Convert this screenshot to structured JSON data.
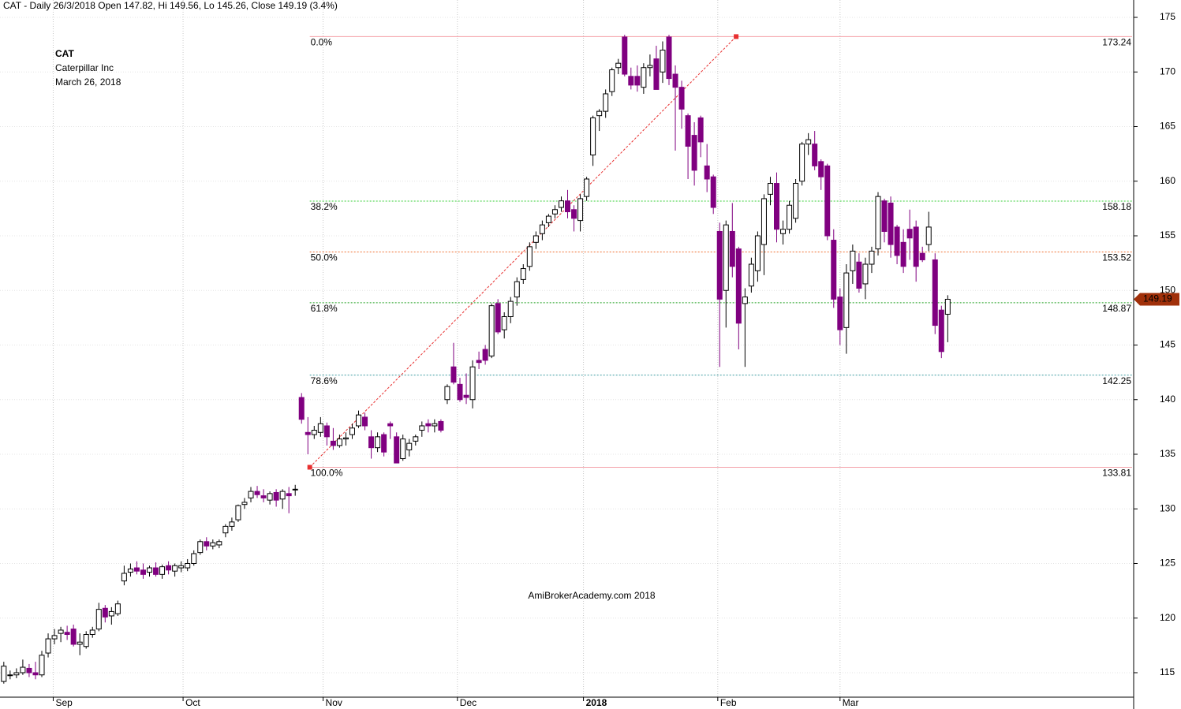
{
  "chart_data": {
    "type": "candlestick",
    "header": "CAT - Daily 26/3/2018 Open 147.82, Hi 149.56, Lo 145.26, Close 149.19 (3.4%)",
    "annotations": [
      "CAT",
      "Caterpillar Inc",
      "March 26, 2018"
    ],
    "watermark": "AmiBrokerAcademy.com  2018",
    "up_color": "#ffffff",
    "down_color": "#800080",
    "annotation_color": "#e8413c",
    "xlim": [
      -0.6,
      178.1
    ],
    "xticks": [
      {
        "value": 7.8,
        "label": "Sep"
      },
      {
        "value": 28.3,
        "label": "Oct"
      },
      {
        "value": 50.4,
        "label": "Nov"
      },
      {
        "value": 71.6,
        "label": "Dec"
      },
      {
        "value": 91.5,
        "label": "2018"
      },
      {
        "value": 112.7,
        "label": "Feb"
      },
      {
        "value": 132,
        "label": "Mar"
      }
    ],
    "ylim": [
      112.76,
      176.59
    ],
    "yticks": [
      115,
      120,
      125,
      130,
      135,
      140,
      145,
      150,
      155,
      160,
      165,
      170,
      175
    ],
    "grid": true,
    "trendline": {
      "x": [
        48.3,
        115.6
      ],
      "y": [
        133.81,
        173.24
      ],
      "color": "#e83030"
    },
    "fib_levels": [
      {
        "label": "0.0%",
        "value": 173.24,
        "color": "#f4a0a8"
      },
      {
        "label": "38.2%",
        "value": 158.18,
        "color": "#3ad03a"
      },
      {
        "label": "50.0%",
        "value": 153.52,
        "color": "#f07030"
      },
      {
        "label": "61.8%",
        "value": 148.87,
        "color": "#20a020"
      },
      {
        "label": "78.6%",
        "value": 142.25,
        "color": "#3a9aa0"
      },
      {
        "label": "100.0%",
        "value": 133.81,
        "color": "#f4a0a8"
      }
    ],
    "candles": [
      [
        114.2,
        116.0,
        114.0,
        115.6
      ],
      [
        114.8,
        115.2,
        114.4,
        114.8
      ],
      [
        114.8,
        115.4,
        114.5,
        115.0
      ],
      [
        115.0,
        116.2,
        114.8,
        115.5
      ],
      [
        115.4,
        115.8,
        114.6,
        115.0
      ],
      [
        115.0,
        116.0,
        114.4,
        114.8
      ],
      [
        114.8,
        117.0,
        114.6,
        116.6
      ],
      [
        116.8,
        118.6,
        116.4,
        118.1
      ],
      [
        118.1,
        119.0,
        117.6,
        118.4
      ],
      [
        118.6,
        119.2,
        117.8,
        118.9
      ],
      [
        118.7,
        119.3,
        118.0,
        118.5
      ],
      [
        119.0,
        119.4,
        117.4,
        117.6
      ],
      [
        117.6,
        118.6,
        116.6,
        117.8
      ],
      [
        117.4,
        118.8,
        117.2,
        118.5
      ],
      [
        118.5,
        119.2,
        118.2,
        118.9
      ],
      [
        119.0,
        121.4,
        118.8,
        120.8
      ],
      [
        120.9,
        121.2,
        119.6,
        120.1
      ],
      [
        120.2,
        121.0,
        119.4,
        120.6
      ],
      [
        120.4,
        121.6,
        120.2,
        121.3
      ],
      [
        123.4,
        124.8,
        123.0,
        124.1
      ],
      [
        124.2,
        125.0,
        123.8,
        124.5
      ],
      [
        124.6,
        125.2,
        124.0,
        124.3
      ],
      [
        124.4,
        125.0,
        123.6,
        124.0
      ],
      [
        124.2,
        124.8,
        123.8,
        124.6
      ],
      [
        124.6,
        125.1,
        123.8,
        124.0
      ],
      [
        124.0,
        124.9,
        123.6,
        124.7
      ],
      [
        124.8,
        125.2,
        124.0,
        124.4
      ],
      [
        124.3,
        125.0,
        123.8,
        124.8
      ],
      [
        124.6,
        125.2,
        124.2,
        124.8
      ],
      [
        124.6,
        125.4,
        124.3,
        125.0
      ],
      [
        125.0,
        126.2,
        124.8,
        125.9
      ],
      [
        126.0,
        127.2,
        125.8,
        127.0
      ],
      [
        127.0,
        127.4,
        126.2,
        126.6
      ],
      [
        126.6,
        127.2,
        126.3,
        126.9
      ],
      [
        126.7,
        127.2,
        126.4,
        127.0
      ],
      [
        127.8,
        128.6,
        127.4,
        128.4
      ],
      [
        128.4,
        129.2,
        128.0,
        128.8
      ],
      [
        129.0,
        130.4,
        128.8,
        130.3
      ],
      [
        130.4,
        131.0,
        130.0,
        130.6
      ],
      [
        131.0,
        132.0,
        130.6,
        131.6
      ],
      [
        131.6,
        132.1,
        131.0,
        131.3
      ],
      [
        131.2,
        131.8,
        130.6,
        131.0
      ],
      [
        130.8,
        131.6,
        130.4,
        131.4
      ],
      [
        131.5,
        131.8,
        130.2,
        130.8
      ],
      [
        130.9,
        131.8,
        130.0,
        131.6
      ],
      [
        131.4,
        132.0,
        129.6,
        131.2
      ],
      [
        131.8,
        132.2,
        131.2,
        131.8
      ],
      [
        140.2,
        140.6,
        137.8,
        138.2
      ],
      [
        137.0,
        138.4,
        135.0,
        136.8
      ],
      [
        136.8,
        137.6,
        136.4,
        137.2
      ],
      [
        137.0,
        138.4,
        136.6,
        137.8
      ],
      [
        137.6,
        137.9,
        135.8,
        136.6
      ],
      [
        136.2,
        137.4,
        135.4,
        135.8
      ],
      [
        135.8,
        136.8,
        135.6,
        136.4
      ],
      [
        136.4,
        137.0,
        135.8,
        136.5
      ],
      [
        136.8,
        137.8,
        136.4,
        137.4
      ],
      [
        137.6,
        139.0,
        137.4,
        138.6
      ],
      [
        138.4,
        138.8,
        137.2,
        137.6
      ],
      [
        136.6,
        137.2,
        134.6,
        135.6
      ],
      [
        135.6,
        137.0,
        135.2,
        136.6
      ],
      [
        136.8,
        137.0,
        134.8,
        135.2
      ],
      [
        137.8,
        138.0,
        136.4,
        137.6
      ],
      [
        136.6,
        137.0,
        134.2,
        134.2
      ],
      [
        134.6,
        136.8,
        134.4,
        136.4
      ],
      [
        135.4,
        136.4,
        134.8,
        136.0
      ],
      [
        136.2,
        136.8,
        135.8,
        136.6
      ],
      [
        137.2,
        138.0,
        136.6,
        137.6
      ],
      [
        137.8,
        138.2,
        137.0,
        137.6
      ],
      [
        137.6,
        138.2,
        137.0,
        137.8
      ],
      [
        138.0,
        138.2,
        137.0,
        137.2
      ],
      [
        140.0,
        141.4,
        139.6,
        141.2
      ],
      [
        143.0,
        145.2,
        141.4,
        141.6
      ],
      [
        141.4,
        142.0,
        139.8,
        140.0
      ],
      [
        140.4,
        142.4,
        139.6,
        140.2
      ],
      [
        140.0,
        143.6,
        139.2,
        143.0
      ],
      [
        143.6,
        144.4,
        142.8,
        143.4
      ],
      [
        144.6,
        145.0,
        143.2,
        143.6
      ],
      [
        144.0,
        148.8,
        143.8,
        148.6
      ],
      [
        148.8,
        149.2,
        146.0,
        146.2
      ],
      [
        146.4,
        148.0,
        145.6,
        147.6
      ],
      [
        147.6,
        149.4,
        147.0,
        149.0
      ],
      [
        149.4,
        151.2,
        148.6,
        150.8
      ],
      [
        151.0,
        152.4,
        150.6,
        152.0
      ],
      [
        152.2,
        154.4,
        151.8,
        154.0
      ],
      [
        154.4,
        155.4,
        153.8,
        155.0
      ],
      [
        155.2,
        156.4,
        154.6,
        156.0
      ],
      [
        156.2,
        157.0,
        155.8,
        156.8
      ],
      [
        157.0,
        157.8,
        156.6,
        157.4
      ],
      [
        157.6,
        158.6,
        157.2,
        158.2
      ],
      [
        158.2,
        159.2,
        156.6,
        157.2
      ],
      [
        157.4,
        157.8,
        155.4,
        156.6
      ],
      [
        156.4,
        158.8,
        155.4,
        158.4
      ],
      [
        158.6,
        160.4,
        158.2,
        160.2
      ],
      [
        162.4,
        166.0,
        161.4,
        165.8
      ],
      [
        166.0,
        166.6,
        164.6,
        166.4
      ],
      [
        166.4,
        168.4,
        165.8,
        168.0
      ],
      [
        168.2,
        170.4,
        167.8,
        170.2
      ],
      [
        170.4,
        171.2,
        169.8,
        170.8
      ],
      [
        173.2,
        173.4,
        169.6,
        169.8
      ],
      [
        169.6,
        170.4,
        168.4,
        168.8
      ],
      [
        169.6,
        170.6,
        168.2,
        168.8
      ],
      [
        168.6,
        170.8,
        168.0,
        170.4
      ],
      [
        170.4,
        171.6,
        169.6,
        170.6
      ],
      [
        171.2,
        172.4,
        168.6,
        168.4
      ],
      [
        170.0,
        172.8,
        169.0,
        172.0
      ],
      [
        173.2,
        173.4,
        168.8,
        169.4
      ],
      [
        169.8,
        170.6,
        162.8,
        168.6
      ],
      [
        168.6,
        169.2,
        164.8,
        166.6
      ],
      [
        166.0,
        166.2,
        160.2,
        163.2
      ],
      [
        164.2,
        165.4,
        159.6,
        161.0
      ],
      [
        165.8,
        166.0,
        162.2,
        163.6
      ],
      [
        161.4,
        163.4,
        159.0,
        160.2
      ],
      [
        160.4,
        160.6,
        157.0,
        157.6
      ],
      [
        155.4,
        156.2,
        143.0,
        149.2
      ],
      [
        150.0,
        156.4,
        146.6,
        156.0
      ],
      [
        155.4,
        158.0,
        151.2,
        152.2
      ],
      [
        153.8,
        154.0,
        144.6,
        147.0
      ],
      [
        148.8,
        150.2,
        143.0,
        149.4
      ],
      [
        150.4,
        153.0,
        149.8,
        152.4
      ],
      [
        151.8,
        155.4,
        150.8,
        155.0
      ],
      [
        154.2,
        158.8,
        151.4,
        158.4
      ],
      [
        158.8,
        160.4,
        157.8,
        159.8
      ],
      [
        159.8,
        160.8,
        154.4,
        155.6
      ],
      [
        155.2,
        156.4,
        154.2,
        155.6
      ],
      [
        155.6,
        158.2,
        155.2,
        157.8
      ],
      [
        156.6,
        160.2,
        156.2,
        159.8
      ],
      [
        160.0,
        163.6,
        159.6,
        163.4
      ],
      [
        163.4,
        164.4,
        162.4,
        163.8
      ],
      [
        163.4,
        164.6,
        161.0,
        161.4
      ],
      [
        161.8,
        162.0,
        159.2,
        160.4
      ],
      [
        161.4,
        161.6,
        154.6,
        155.0
      ],
      [
        154.6,
        155.6,
        148.4,
        149.2
      ],
      [
        149.4,
        150.2,
        145.0,
        146.4
      ],
      [
        146.6,
        152.4,
        144.2,
        151.6
      ],
      [
        151.8,
        154.2,
        150.6,
        153.6
      ],
      [
        152.6,
        153.4,
        149.8,
        150.2
      ],
      [
        150.6,
        153.0,
        149.2,
        152.4
      ],
      [
        152.4,
        154.0,
        151.6,
        153.6
      ],
      [
        153.8,
        159.0,
        153.2,
        158.6
      ],
      [
        158.2,
        158.4,
        154.4,
        155.4
      ],
      [
        158.0,
        158.6,
        153.0,
        154.2
      ],
      [
        155.8,
        156.0,
        152.4,
        153.2
      ],
      [
        154.4,
        155.6,
        151.6,
        152.2
      ],
      [
        155.6,
        157.4,
        152.8,
        154.8
      ],
      [
        155.8,
        156.4,
        150.8,
        152.2
      ],
      [
        153.4,
        154.0,
        152.6,
        152.8
      ],
      [
        154.2,
        157.2,
        153.6,
        155.8
      ],
      [
        152.8,
        153.4,
        146.0,
        146.8
      ],
      [
        148.2,
        148.6,
        143.8,
        144.4
      ],
      [
        147.82,
        149.56,
        145.26,
        149.19
      ]
    ]
  }
}
